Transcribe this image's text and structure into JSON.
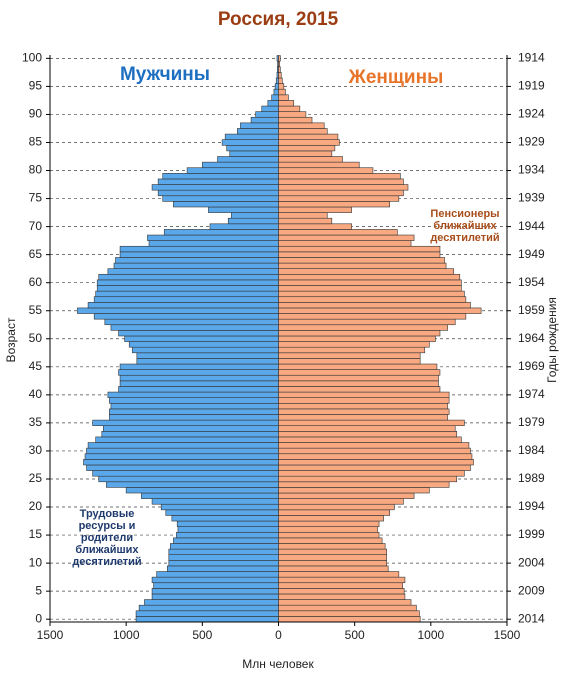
{
  "chart_data": {
    "type": "pyramid",
    "title": "Россия, 2015",
    "x_label": "Млн человек",
    "y_label": "Возраст",
    "y2_label": "Годы рождения",
    "annotations": [
      {
        "lines": [
          "Пенсионеры",
          "ближайших",
          "десятилетий"
        ],
        "color": "#a84e1c"
      },
      {
        "lines": [
          "Трудовые",
          "ресурсы и",
          "родители",
          "ближайших",
          "десятилетий"
        ],
        "color": "#1f3a6e"
      }
    ],
    "y": [
      0,
      1,
      2,
      3,
      4,
      5,
      6,
      7,
      8,
      9,
      10,
      11,
      12,
      13,
      14,
      15,
      16,
      17,
      18,
      19,
      20,
      21,
      22,
      23,
      24,
      25,
      26,
      27,
      28,
      29,
      30,
      31,
      32,
      33,
      34,
      35,
      36,
      37,
      38,
      39,
      40,
      41,
      42,
      43,
      44,
      45,
      46,
      47,
      48,
      49,
      50,
      51,
      52,
      53,
      54,
      55,
      56,
      57,
      58,
      59,
      60,
      61,
      62,
      63,
      64,
      65,
      66,
      67,
      68,
      69,
      70,
      71,
      72,
      73,
      74,
      75,
      76,
      77,
      78,
      79,
      80,
      81,
      82,
      83,
      84,
      85,
      86,
      87,
      88,
      89,
      90,
      91,
      92,
      93,
      94,
      95,
      96,
      97,
      98,
      99,
      100
    ],
    "series": [
      {
        "name": "Мужчины",
        "color": "#5aa8ea",
        "label_color": "#1f6fc1",
        "side": "left",
        "values": [
          935,
          935,
          915,
          880,
          830,
          830,
          820,
          830,
          800,
          730,
          720,
          720,
          720,
          710,
          690,
          670,
          660,
          665,
          700,
          740,
          770,
          830,
          900,
          1000,
          1130,
          1180,
          1220,
          1260,
          1280,
          1270,
          1260,
          1250,
          1200,
          1160,
          1150,
          1220,
          1110,
          1110,
          1100,
          1110,
          1120,
          1050,
          1040,
          1040,
          1050,
          1040,
          930,
          930,
          960,
          980,
          1010,
          1050,
          1100,
          1140,
          1210,
          1320,
          1250,
          1210,
          1200,
          1190,
          1190,
          1180,
          1120,
          1080,
          1070,
          1040,
          1040,
          850,
          860,
          750,
          450,
          330,
          310,
          460,
          690,
          760,
          790,
          830,
          790,
          760,
          600,
          500,
          400,
          320,
          340,
          370,
          350,
          270,
          250,
          180,
          150,
          110,
          70,
          45,
          30,
          22,
          15,
          10,
          8,
          6,
          10
        ]
      },
      {
        "name": "Женщины",
        "color": "#f8a982",
        "label_color": "#e8742a",
        "side": "right",
        "values": [
          930,
          925,
          905,
          870,
          830,
          825,
          815,
          830,
          790,
          720,
          710,
          710,
          710,
          700,
          680,
          660,
          650,
          660,
          690,
          730,
          760,
          820,
          890,
          990,
          1120,
          1170,
          1220,
          1260,
          1280,
          1270,
          1260,
          1250,
          1200,
          1170,
          1160,
          1220,
          1110,
          1120,
          1110,
          1120,
          1120,
          1060,
          1050,
          1050,
          1060,
          1040,
          930,
          930,
          960,
          990,
          1030,
          1060,
          1110,
          1160,
          1230,
          1330,
          1260,
          1230,
          1220,
          1200,
          1200,
          1190,
          1150,
          1100,
          1090,
          1060,
          1060,
          870,
          890,
          780,
          480,
          350,
          320,
          480,
          730,
          790,
          820,
          850,
          820,
          800,
          620,
          530,
          420,
          350,
          370,
          400,
          390,
          320,
          300,
          220,
          180,
          140,
          100,
          65,
          45,
          35,
          25,
          18,
          12,
          8,
          12
        ]
      }
    ],
    "xlim": [
      -1500,
      1500
    ],
    "xticks": [
      {
        "value": -1500,
        "label": "1500"
      },
      {
        "value": -1000,
        "label": "1000"
      },
      {
        "value": -500,
        "label": "500"
      },
      0,
      500,
      1000,
      1500
    ],
    "ylim": [
      -0.5,
      100.6
    ],
    "yticks": [
      0,
      5,
      10,
      15,
      20,
      25,
      30,
      35,
      40,
      45,
      50,
      55,
      60,
      65,
      70,
      75,
      80,
      85,
      90,
      95,
      100
    ],
    "y2lim": [
      2014.5,
      1913.4
    ],
    "y2ticks": [
      1914,
      1919,
      1924,
      1929,
      1934,
      1939,
      1944,
      1949,
      1954,
      1959,
      1964,
      1969,
      1974,
      1979,
      1984,
      1989,
      1994,
      1999,
      2004,
      2009,
      2014
    ],
    "grid": true
  }
}
